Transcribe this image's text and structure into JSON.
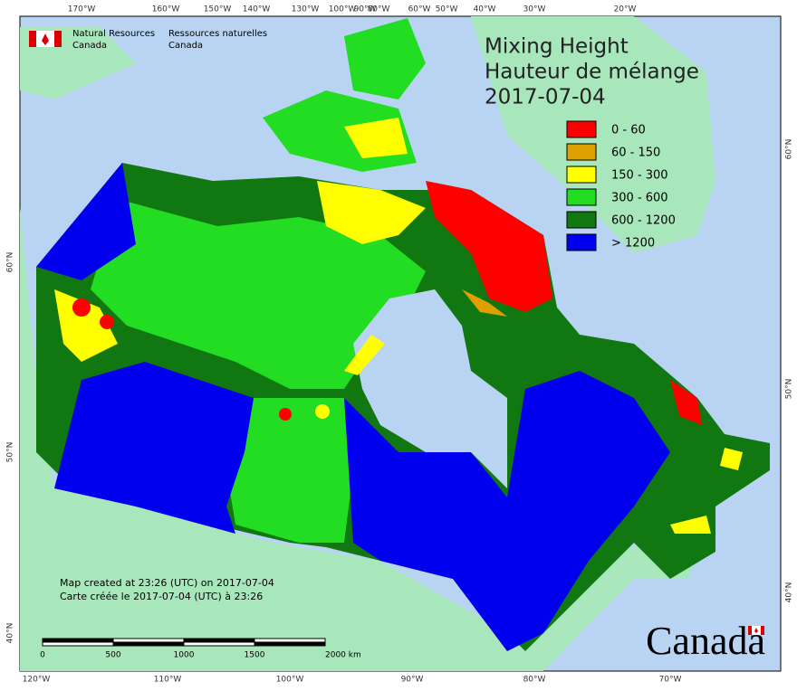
{
  "header": {
    "agency_en": [
      "Natural Resources",
      "Canada"
    ],
    "agency_fr": [
      "Ressources naturelles",
      "Canada"
    ]
  },
  "title": [
    "Mixing Height",
    "Hauteur de mélange",
    "2017-07-04"
  ],
  "legend": [
    {
      "label": "0 - 60",
      "color": "#ff0000"
    },
    {
      "label": "60 - 150",
      "color": "#dda000"
    },
    {
      "label": "150 - 300",
      "color": "#ffff00"
    },
    {
      "label": "300 - 600",
      "color": "#22dd22"
    },
    {
      "label": "600 - 1200",
      "color": "#117711"
    },
    {
      "label": "> 1200",
      "color": "#0000ee"
    }
  ],
  "notes": [
    "Map created at 23:26 (UTC) on 2017-07-04",
    "Carte créée le 2017-07-04 (UTC) à 23:26"
  ],
  "scale_bar": [
    "0",
    "500",
    "1000",
    "1500",
    "2000  km"
  ],
  "graticule": {
    "top": [
      "170°W",
      "160°W",
      "150°W",
      "140°W",
      "130°W",
      "100°W",
      "90°W",
      "80°W",
      "60°W",
      "50°W",
      "40°W",
      "30°W",
      "20°W"
    ],
    "bottom": [
      "120°W",
      "110°W",
      "100°W",
      "90°W",
      "80°W",
      "70°W"
    ],
    "left": [
      "60°N",
      "50°N",
      "40°N"
    ],
    "right": [
      "60°N",
      "50°N",
      "40°N"
    ]
  },
  "wordmark": "Canada"
}
